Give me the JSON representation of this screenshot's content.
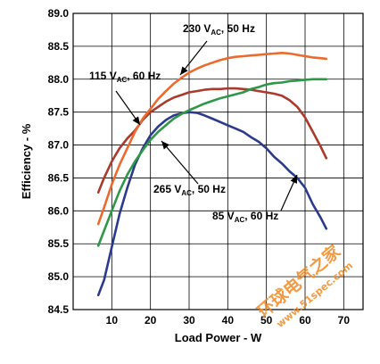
{
  "chart_data": {
    "type": "line",
    "xlabel": "Load Power - W",
    "ylabel": "Efficiency - %",
    "xlim": [
      0,
      75
    ],
    "ylim": [
      84.5,
      89.0
    ],
    "x_ticks": [
      "10",
      "20",
      "30",
      "40",
      "50",
      "60",
      "70"
    ],
    "y_ticks": [
      "84.5",
      "85.0",
      "85.5",
      "86.0",
      "86.5",
      "87.0",
      "87.5",
      "88.0",
      "88.5",
      "89.0"
    ],
    "grid": true,
    "series": [
      {
        "name": "85 VAC, 60 Hz",
        "color": "#2b3a8c",
        "x": [
          6.5,
          8,
          10,
          12,
          14,
          16,
          18,
          20,
          22,
          24,
          26,
          28,
          30,
          32,
          34,
          36,
          38,
          40,
          42,
          44,
          46,
          48,
          50,
          52,
          54,
          56,
          58,
          60,
          62,
          64,
          65.5
        ],
        "y": [
          84.72,
          84.95,
          85.45,
          85.95,
          86.35,
          86.7,
          86.95,
          87.15,
          87.28,
          87.38,
          87.45,
          87.48,
          87.5,
          87.49,
          87.45,
          87.4,
          87.35,
          87.3,
          87.25,
          87.2,
          87.12,
          87.05,
          86.95,
          86.82,
          86.72,
          86.6,
          86.5,
          86.35,
          86.1,
          85.9,
          85.73
        ]
      },
      {
        "name": "115 VAC, 60 Hz",
        "color": "#a93a2c",
        "x": [
          6.5,
          8,
          10,
          12,
          14,
          16,
          18,
          20,
          22,
          24,
          26,
          28,
          30,
          32,
          34,
          36,
          38,
          40,
          42,
          44,
          46,
          48,
          50,
          52,
          54,
          56,
          58,
          60,
          62,
          64,
          65.5
        ],
        "y": [
          86.28,
          86.5,
          86.75,
          86.95,
          87.1,
          87.22,
          87.38,
          87.5,
          87.58,
          87.66,
          87.72,
          87.76,
          87.8,
          87.82,
          87.84,
          87.85,
          87.85,
          87.86,
          87.86,
          87.85,
          87.84,
          87.82,
          87.8,
          87.78,
          87.75,
          87.68,
          87.58,
          87.42,
          87.2,
          86.98,
          86.8
        ]
      },
      {
        "name": "230 VAC, 50 Hz",
        "color": "#ec6a2d",
        "x": [
          6.5,
          8,
          10,
          12,
          14,
          16,
          18,
          20,
          22,
          24,
          26,
          28,
          30,
          32,
          34,
          36,
          38,
          40,
          42,
          44,
          46,
          48,
          50,
          52,
          54,
          56,
          58,
          60,
          62,
          64,
          65.5
        ],
        "y": [
          85.8,
          86.05,
          86.4,
          86.7,
          86.95,
          87.2,
          87.4,
          87.55,
          87.7,
          87.82,
          87.93,
          88.02,
          88.1,
          88.16,
          88.21,
          88.25,
          88.29,
          88.32,
          88.34,
          88.35,
          88.36,
          88.37,
          88.38,
          88.39,
          88.4,
          88.39,
          88.37,
          88.35,
          88.33,
          88.32,
          88.31
        ]
      },
      {
        "name": "265 VAC, 50 Hz",
        "color": "#2e9748",
        "x": [
          6.5,
          8,
          10,
          12,
          14,
          16,
          18,
          20,
          22,
          24,
          26,
          28,
          30,
          32,
          34,
          36,
          38,
          40,
          42,
          44,
          46,
          48,
          50,
          52,
          54,
          56,
          58,
          60,
          62,
          64,
          65.5
        ],
        "y": [
          85.47,
          85.7,
          86.0,
          86.3,
          86.55,
          86.75,
          86.92,
          87.08,
          87.2,
          87.3,
          87.4,
          87.47,
          87.53,
          87.58,
          87.63,
          87.67,
          87.71,
          87.74,
          87.77,
          87.8,
          87.85,
          87.88,
          87.92,
          87.94,
          87.95,
          87.97,
          87.98,
          87.99,
          88.0,
          88.0,
          88.0
        ]
      }
    ],
    "annotations": [
      {
        "series": 0,
        "main": "85 V",
        "sub": "AC",
        "rest": ", 60 Hz"
      },
      {
        "series": 1,
        "main": "115 V",
        "sub": "AC",
        "rest": ", 60 Hz"
      },
      {
        "series": 2,
        "main": "230 V",
        "sub": "AC",
        "rest": ", 50 Hz"
      },
      {
        "series": 3,
        "main": "265 V",
        "sub": "AC",
        "rest": ", 50 Hz"
      }
    ]
  },
  "watermark": {
    "title": "环球电气之家",
    "url": "www.51spec.com"
  }
}
